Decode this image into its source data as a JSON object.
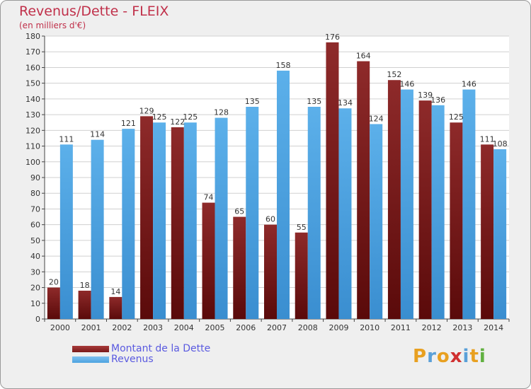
{
  "header": {
    "title": "Revenus/Dette - FLEIX",
    "subtitle": "(en milliers d'€)"
  },
  "colors": {
    "dette": "#7a1a1a",
    "revenus": "#4da3e0",
    "text": "#333333",
    "title": "#c0304a",
    "legend_text": "#5a5ae0"
  },
  "legend": {
    "dette_label": "Montant de la Dette",
    "revenus_label": "Revenus"
  },
  "logo": {
    "letters": [
      "P",
      "r",
      "o",
      "x",
      "i",
      "t",
      "i"
    ],
    "colors": [
      "#e8a020",
      "#5aa0d8",
      "#e8a020",
      "#d03030",
      "#5aa0d8",
      "#e8a020",
      "#60b040"
    ]
  },
  "chart_data": {
    "type": "bar",
    "categories": [
      "2000",
      "2001",
      "2002",
      "2003",
      "2004",
      "2005",
      "2006",
      "2007",
      "2008",
      "2009",
      "2010",
      "2011",
      "2012",
      "2013",
      "2014"
    ],
    "series": [
      {
        "name": "Montant de la Dette",
        "values": [
          20,
          18,
          14,
          129,
          122,
          74,
          65,
          60,
          55,
          176,
          164,
          152,
          139,
          125,
          111
        ]
      },
      {
        "name": "Revenus",
        "values": [
          111,
          114,
          121,
          125,
          125,
          128,
          135,
          158,
          135,
          134,
          124,
          146,
          136,
          146,
          108
        ]
      }
    ],
    "ylim": [
      0,
      180
    ],
    "yticks": [
      0,
      10,
      20,
      30,
      40,
      50,
      60,
      70,
      80,
      90,
      100,
      110,
      120,
      130,
      140,
      150,
      160,
      170,
      180
    ],
    "grid": true,
    "legend_position": "bottom-left"
  }
}
